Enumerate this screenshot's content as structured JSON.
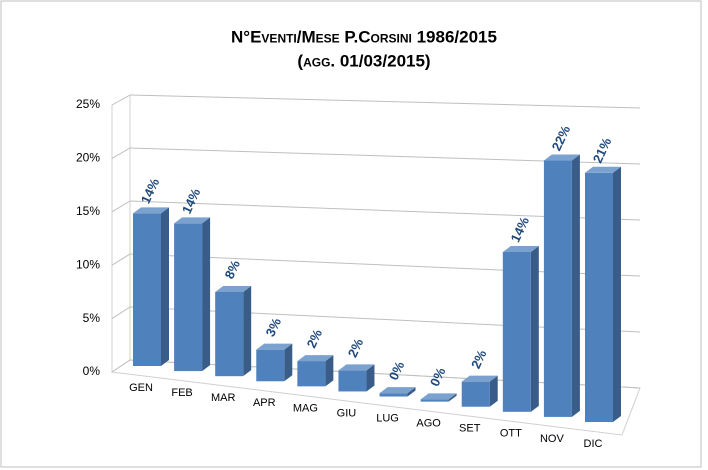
{
  "chart_data": {
    "type": "bar3d",
    "title": "N°Eventi/Mese P.Corsini 1986/2015",
    "subtitle": "(agg. 01/03/2015)",
    "categories": [
      "GEN",
      "FEB",
      "MAR",
      "APR",
      "MAG",
      "GIU",
      "LUG",
      "AGO",
      "SET",
      "OTT",
      "NOV",
      "DIC"
    ],
    "values": [
      14.4,
      13.8,
      7.8,
      2.9,
      2.3,
      1.9,
      0.3,
      0.2,
      2.2,
      13.9,
      22.1,
      21.3
    ],
    "value_labels": [
      "14%",
      "14%",
      "8%",
      "3%",
      "2%",
      "2%",
      "0%",
      "0%",
      "2%",
      "14%",
      "22%",
      "21%"
    ],
    "color": "#4f81bd",
    "ylim": [
      0,
      25
    ],
    "yticks": [
      {
        "value": 0,
        "label": "0%"
      },
      {
        "value": 5,
        "label": "5%"
      },
      {
        "value": 10,
        "label": "10%"
      },
      {
        "value": 15,
        "label": "15%"
      },
      {
        "value": 20,
        "label": "20%"
      },
      {
        "value": 25,
        "label": "25%"
      }
    ],
    "grid": true
  }
}
